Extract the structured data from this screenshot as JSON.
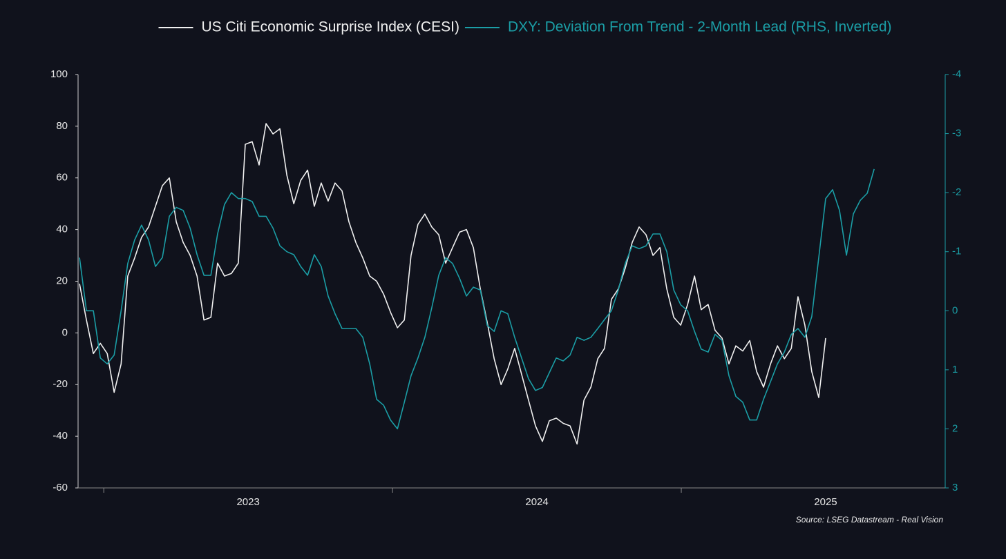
{
  "chart_data": {
    "type": "line",
    "legend": "top",
    "source": "Source: LSEG Datastream - Real Vision",
    "x": [
      2022.916,
      2022.94,
      2022.964,
      2022.988,
      2023.012,
      2023.036,
      2023.06,
      2023.083,
      2023.107,
      2023.131,
      2023.155,
      2023.179,
      2023.203,
      2023.227,
      2023.251,
      2023.275,
      2023.299,
      2023.323,
      2023.347,
      2023.371,
      2023.394,
      2023.418,
      2023.442,
      2023.466,
      2023.49,
      2023.514,
      2023.538,
      2023.562,
      2023.586,
      2023.61,
      2023.634,
      2023.658,
      2023.682,
      2023.706,
      2023.729,
      2023.753,
      2023.777,
      2023.801,
      2023.825,
      2023.849,
      2023.873,
      2023.897,
      2023.921,
      2023.945,
      2023.969,
      2023.993,
      2024.017,
      2024.041,
      2024.064,
      2024.088,
      2024.112,
      2024.136,
      2024.16,
      2024.184,
      2024.208,
      2024.232,
      2024.256,
      2024.28,
      2024.304,
      2024.328,
      2024.352,
      2024.376,
      2024.399,
      2024.423,
      2024.447,
      2024.471,
      2024.495,
      2024.519,
      2024.543,
      2024.567,
      2024.591,
      2024.615,
      2024.639,
      2024.663,
      2024.687,
      2024.711,
      2024.734,
      2024.758,
      2024.782,
      2024.806,
      2024.83,
      2024.854,
      2024.878,
      2024.902,
      2024.926,
      2024.95,
      2024.974,
      2024.998,
      2025.022,
      2025.046,
      2025.069,
      2025.093,
      2025.117,
      2025.141,
      2025.165,
      2025.189,
      2025.213,
      2025.237,
      2025.261,
      2025.285,
      2025.309,
      2025.333,
      2025.357,
      2025.381,
      2025.404,
      2025.428,
      2025.452,
      2025.476,
      2025.5,
      2025.524,
      2025.548,
      2025.572,
      2025.596,
      2025.62,
      2025.644,
      2025.668
    ],
    "series": [
      {
        "name": "US Citi Economic Surprise Index (CESI)",
        "color": "#f0f0f0",
        "axis": "y",
        "values": [
          19,
          5,
          -8,
          -4,
          -8,
          -23,
          -12,
          22,
          29,
          37,
          41,
          49,
          57,
          60,
          43,
          35,
          30,
          22,
          5,
          6,
          27,
          22,
          23,
          27,
          73,
          74,
          65,
          81,
          77,
          79,
          61,
          50,
          59,
          63,
          49,
          58,
          51,
          58,
          55,
          43,
          35,
          29,
          22,
          20,
          15,
          8,
          2,
          5,
          30,
          42,
          46,
          41,
          38,
          27,
          33,
          39,
          40,
          33,
          17,
          4,
          -10,
          -20,
          -14,
          -6,
          -16,
          -26,
          -36,
          -42,
          -34,
          -33,
          -35,
          -36,
          -43,
          -26,
          -21,
          -10,
          -6,
          13,
          17,
          25,
          35,
          41,
          38,
          30,
          33,
          17,
          6,
          3,
          11,
          22,
          9,
          11,
          1,
          -2,
          -12,
          -5,
          -7,
          -3,
          -15,
          -21,
          -12,
          -5,
          -10,
          -6,
          14,
          3,
          -15,
          -25,
          -2,
          null,
          null,
          null,
          null,
          null,
          null,
          null
        ]
      },
      {
        "name": "DXY: Deviation From Trend - 2-Month Lead (RHS, Inverted)",
        "color": "#1b9ea6",
        "axis": "y2",
        "values": [
          -0.9,
          0.0,
          0.0,
          0.8,
          0.9,
          0.75,
          0.0,
          -0.8,
          -1.2,
          -1.45,
          -1.2,
          -0.75,
          -0.9,
          -1.6,
          -1.75,
          -1.7,
          -1.4,
          -0.95,
          -0.6,
          -0.6,
          -1.3,
          -1.8,
          -2.0,
          -1.9,
          -1.9,
          -1.85,
          -1.6,
          -1.6,
          -1.4,
          -1.1,
          -1.0,
          -0.95,
          -0.75,
          -0.6,
          -0.95,
          -0.75,
          -0.25,
          0.05,
          0.3,
          0.3,
          0.3,
          0.45,
          0.9,
          1.5,
          1.6,
          1.85,
          2.0,
          1.55,
          1.1,
          0.8,
          0.45,
          -0.05,
          -0.6,
          -0.9,
          -0.8,
          -0.55,
          -0.25,
          -0.4,
          -0.35,
          0.25,
          0.35,
          0.0,
          0.05,
          0.45,
          0.8,
          1.15,
          1.35,
          1.3,
          1.05,
          0.8,
          0.85,
          0.75,
          0.45,
          0.5,
          0.45,
          0.3,
          0.15,
          0.0,
          -0.35,
          -0.8,
          -1.1,
          -1.05,
          -1.1,
          -1.3,
          -1.3,
          -1.0,
          -0.35,
          -0.1,
          0.0,
          0.35,
          0.65,
          0.7,
          0.4,
          0.5,
          1.1,
          1.45,
          1.55,
          1.85,
          1.85,
          1.5,
          1.2,
          0.9,
          0.7,
          0.4,
          0.3,
          0.45,
          0.1,
          -0.9,
          -1.9,
          -2.05,
          -1.7,
          -0.94,
          -1.64,
          -1.87,
          -1.99,
          -2.4
        ]
      }
    ],
    "xlim": [
      2022.911,
      2025.914
    ],
    "xticks": [
      2023,
      2024,
      2025
    ],
    "ylim": [
      -60,
      100
    ],
    "yticks": [
      -60,
      -40,
      -20,
      0,
      20,
      40,
      60,
      80,
      100
    ],
    "y2lim": [
      3,
      -4
    ],
    "y2ticks": [
      -4,
      -3,
      -2,
      -1,
      0,
      1,
      2,
      3
    ],
    "grid": false
  }
}
